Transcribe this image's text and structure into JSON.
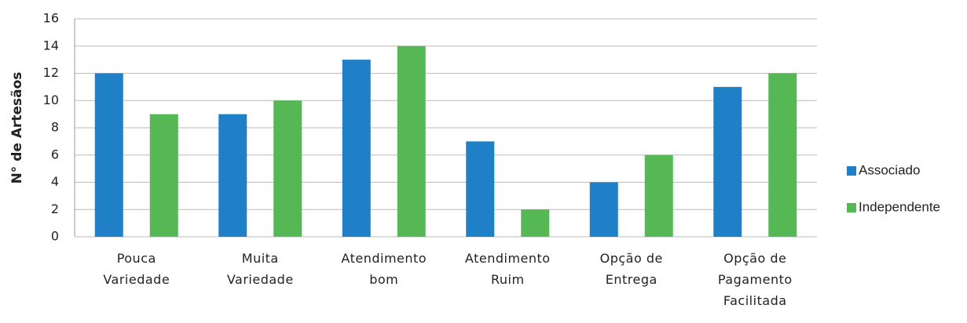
{
  "chart_data": {
    "type": "bar",
    "y_label": "N° de Artesãos",
    "categories": [
      "Pouca\nVariedade",
      "Muita\nVariedade",
      "Atendimento\nbom",
      "Atendimento\nRuim",
      "Opção de\nEntrega",
      "Opção de\nPagamento\nFacilitada"
    ],
    "series": [
      {
        "name": "Associado",
        "color": "#1f80c8",
        "values": [
          12,
          9,
          13,
          7,
          4,
          11
        ]
      },
      {
        "name": "Independente",
        "color": "#55b855",
        "values": [
          9,
          10,
          14,
          2,
          6,
          12
        ]
      }
    ],
    "ylim": [
      0,
      16
    ],
    "yticks": [
      0,
      2,
      4,
      6,
      8,
      10,
      12,
      14,
      16
    ],
    "grid": true,
    "legend": "right"
  }
}
